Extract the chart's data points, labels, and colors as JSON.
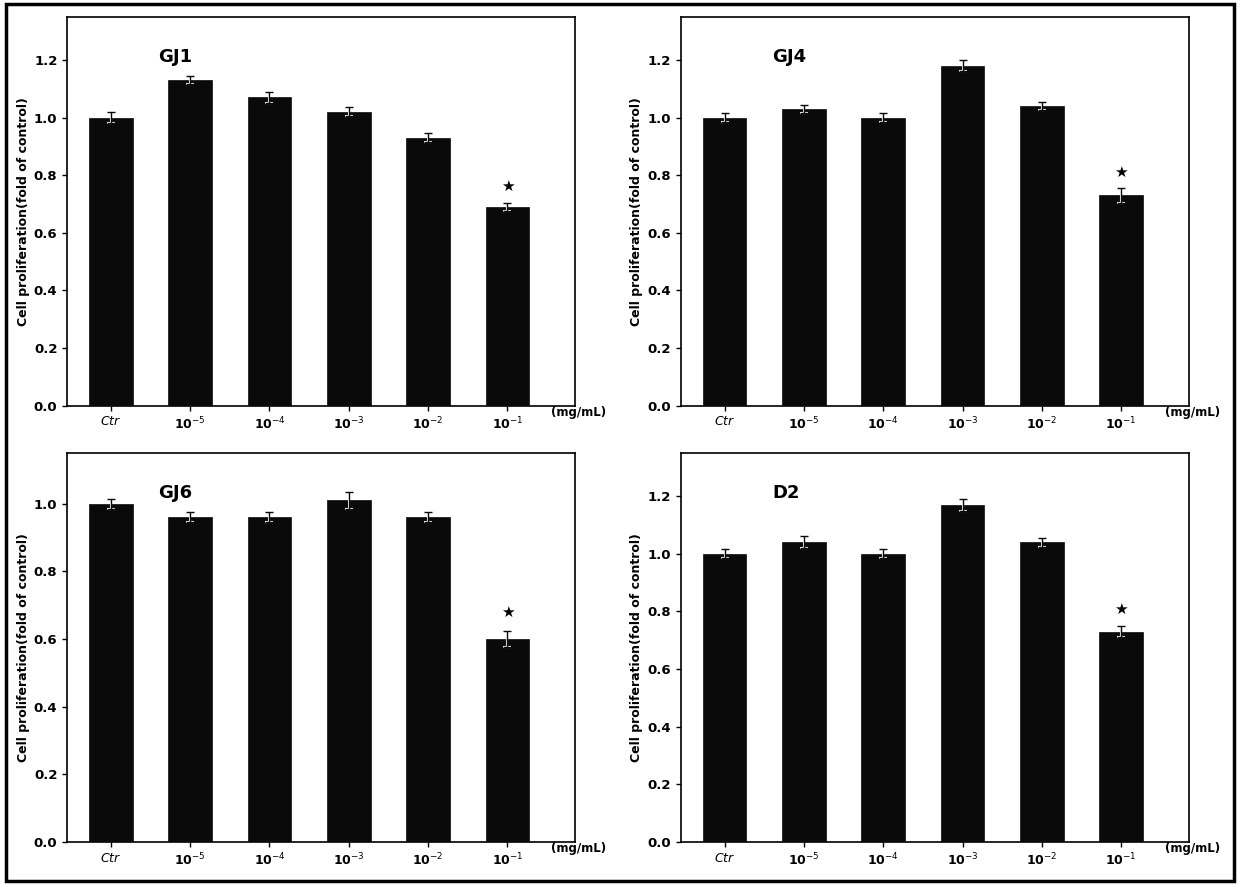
{
  "subplots": [
    {
      "title": "GJ1",
      "values": [
        1.0,
        1.13,
        1.07,
        1.02,
        0.93,
        0.69
      ],
      "errors": [
        0.02,
        0.015,
        0.02,
        0.015,
        0.015,
        0.015
      ],
      "star_index": 5,
      "ylim": [
        0.0,
        1.35
      ],
      "yticks": [
        0.0,
        0.2,
        0.4,
        0.6,
        0.8,
        1.0,
        1.2
      ]
    },
    {
      "title": "GJ4",
      "values": [
        1.0,
        1.03,
        1.0,
        1.18,
        1.04,
        0.73
      ],
      "errors": [
        0.015,
        0.015,
        0.015,
        0.02,
        0.015,
        0.025
      ],
      "star_index": 5,
      "ylim": [
        0.0,
        1.35
      ],
      "yticks": [
        0.0,
        0.2,
        0.4,
        0.6,
        0.8,
        1.0,
        1.2
      ]
    },
    {
      "title": "GJ6",
      "values": [
        1.0,
        0.96,
        0.96,
        1.01,
        0.96,
        0.6
      ],
      "errors": [
        0.015,
        0.015,
        0.015,
        0.025,
        0.015,
        0.025
      ],
      "star_index": 5,
      "ylim": [
        0.0,
        1.15
      ],
      "yticks": [
        0.0,
        0.2,
        0.4,
        0.6,
        0.8,
        1.0
      ]
    },
    {
      "title": "D2",
      "values": [
        1.0,
        1.04,
        1.0,
        1.17,
        1.04,
        0.73
      ],
      "errors": [
        0.015,
        0.02,
        0.015,
        0.02,
        0.015,
        0.02
      ],
      "star_index": 5,
      "ylim": [
        0.0,
        1.35
      ],
      "yticks": [
        0.0,
        0.2,
        0.4,
        0.6,
        0.8,
        1.0,
        1.2
      ]
    }
  ],
  "categories": [
    "Ctr",
    "10$^{-5}$",
    "10$^{-4}$",
    "10$^{-3}$",
    "10$^{-2}$",
    "10$^{-1}$"
  ],
  "xlabel_suffix": "(mg/mL)",
  "ylabel": "Cell proliferation(fold of control)",
  "bar_color": "#0a0a0a",
  "error_color": "#0a0a0a",
  "background_color": "#ffffff",
  "bar_width": 0.55
}
